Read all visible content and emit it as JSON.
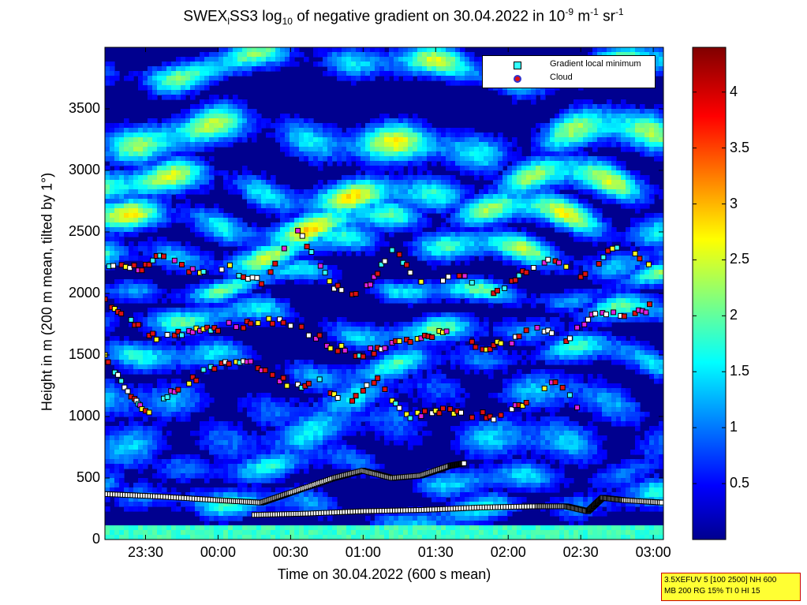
{
  "title": {
    "part1": "SWEX",
    "sub1": "l",
    "part2": "SS3 log",
    "sub2": "10",
    "part3": " of negative gradient on 30.04.2022 in 10",
    "sup1": "-9",
    "part4": " m",
    "sup2": "-1",
    "part5": " sr",
    "sup3": "-1"
  },
  "info_box": {
    "line1": "3.5XEFUV 5 [100 2500] NH 600",
    "line2": "MB 200 RG 15% TI 0 HI 15"
  },
  "colors": {
    "cloud": "#dd1111",
    "minimum": "#33ffff",
    "magenta": "#dd22dd",
    "yellow": "#ffff22"
  },
  "chart_data": {
    "type": "heatmap",
    "title": "SWEX_l SS3 log10 of negative gradient on 30.04.2022 in 10^-9 m^-1 sr^-1",
    "xlabel": "Time on 30.04.2022 (600 s mean)",
    "ylabel": "Height in m (200 m mean, tilted by 1°)",
    "x_ticks": [
      "23:30",
      "00:00",
      "00:30",
      "01:00",
      "01:30",
      "02:00",
      "02:30",
      "03:00"
    ],
    "x_tick_hours": [
      -0.5,
      0,
      0.5,
      1,
      1.5,
      2,
      2.5,
      3
    ],
    "xlim_hours": [
      -0.78,
      3.07
    ],
    "ylim": [
      0,
      4000
    ],
    "y_ticks": [
      0,
      500,
      1000,
      1500,
      2000,
      2500,
      3000,
      3500
    ],
    "colorbar": {
      "ticks": [
        "0.5",
        "1",
        "1.5",
        "2",
        "2.5",
        "3",
        "3.5",
        "4"
      ],
      "tick_values": [
        0.5,
        1,
        1.5,
        2,
        2.5,
        3,
        3.5,
        4
      ],
      "range": [
        0,
        4.4
      ],
      "colormap": "jet"
    },
    "legend": {
      "placement": "top-right",
      "entries": [
        "Gradient local minimum",
        "Cloud"
      ]
    },
    "layers": [
      {
        "h": 3850,
        "th": 130,
        "amp": 2.6
      },
      {
        "h": 3250,
        "th": 160,
        "amp": 2.8
      },
      {
        "h": 2850,
        "th": 140,
        "amp": 2.9
      },
      {
        "h": 2600,
        "th": 130,
        "amp": 3.0
      },
      {
        "h": 2350,
        "th": 120,
        "amp": 2.6
      },
      {
        "h": 2050,
        "th": 90,
        "amp": 2.3
      },
      {
        "h": 1750,
        "th": 110,
        "amp": 2.2
      },
      {
        "h": 1450,
        "th": 120,
        "amp": 2.0
      },
      {
        "h": 1150,
        "th": 160,
        "amp": 1.6
      },
      {
        "h": 850,
        "th": 180,
        "amp": 1.7
      },
      {
        "h": 550,
        "th": 120,
        "amp": 1.8
      },
      {
        "h": 250,
        "th": 120,
        "amp": 1.9
      }
    ],
    "marker_tracks": [
      {
        "name": "cloud-top",
        "points": [
          [
            -0.78,
            2220
          ],
          [
            -0.55,
            2200
          ],
          [
            -0.35,
            2340
          ],
          [
            -0.15,
            2150
          ],
          [
            0.05,
            2220
          ],
          [
            0.3,
            2090
          ],
          [
            0.55,
            2500
          ],
          [
            0.8,
            2050
          ],
          [
            1.0,
            2000
          ],
          [
            1.2,
            2350
          ],
          [
            1.4,
            2100
          ],
          [
            1.7,
            2150
          ],
          [
            1.9,
            1980
          ],
          [
            2.1,
            2170
          ],
          [
            2.3,
            2300
          ],
          [
            2.5,
            2150
          ],
          [
            2.75,
            2380
          ],
          [
            3.0,
            2230
          ]
        ]
      },
      {
        "name": "mid",
        "points": [
          [
            -0.78,
            1950
          ],
          [
            -0.6,
            1780
          ],
          [
            -0.4,
            1620
          ],
          [
            -0.2,
            1700
          ],
          [
            0.0,
            1720
          ],
          [
            0.2,
            1750
          ],
          [
            0.4,
            1780
          ],
          [
            0.6,
            1700
          ],
          [
            0.8,
            1560
          ],
          [
            1.0,
            1500
          ],
          [
            1.2,
            1600
          ],
          [
            1.4,
            1620
          ],
          [
            1.6,
            1700
          ],
          [
            1.8,
            1550
          ],
          [
            2.0,
            1600
          ],
          [
            2.2,
            1750
          ],
          [
            2.4,
            1620
          ],
          [
            2.6,
            1850
          ],
          [
            2.8,
            1800
          ],
          [
            3.0,
            1900
          ]
        ]
      },
      {
        "name": "low",
        "points": [
          [
            -0.78,
            1500
          ],
          [
            -0.6,
            1150
          ],
          [
            -0.5,
            1020
          ],
          [
            -0.3,
            1200
          ],
          [
            -0.1,
            1350
          ],
          [
            0.1,
            1450
          ],
          [
            0.3,
            1400
          ],
          [
            0.5,
            1250
          ],
          [
            0.7,
            1280
          ],
          [
            0.9,
            1100
          ],
          [
            1.1,
            1300
          ],
          [
            1.3,
            1000
          ],
          [
            1.5,
            1050
          ],
          [
            1.7,
            1020
          ],
          [
            1.9,
            1000
          ],
          [
            2.1,
            1100
          ],
          [
            2.3,
            1300
          ],
          [
            2.5,
            1050
          ]
        ]
      },
      {
        "name": "boundary-upper",
        "points": [
          [
            -0.78,
            370
          ],
          [
            -0.4,
            350
          ],
          [
            0.0,
            320
          ],
          [
            0.3,
            300
          ],
          [
            0.5,
            380
          ],
          [
            0.8,
            500
          ],
          [
            1.0,
            560
          ],
          [
            1.2,
            500
          ],
          [
            1.4,
            520
          ],
          [
            1.6,
            600
          ],
          [
            1.7,
            620
          ]
        ]
      },
      {
        "name": "boundary-lower",
        "points": [
          [
            0.25,
            200
          ],
          [
            0.6,
            210
          ],
          [
            1.0,
            230
          ],
          [
            1.4,
            240
          ],
          [
            1.8,
            260
          ],
          [
            2.2,
            270
          ],
          [
            2.4,
            270
          ],
          [
            2.55,
            230
          ],
          [
            2.65,
            340
          ],
          [
            2.8,
            320
          ],
          [
            3.07,
            300
          ]
        ]
      }
    ]
  }
}
